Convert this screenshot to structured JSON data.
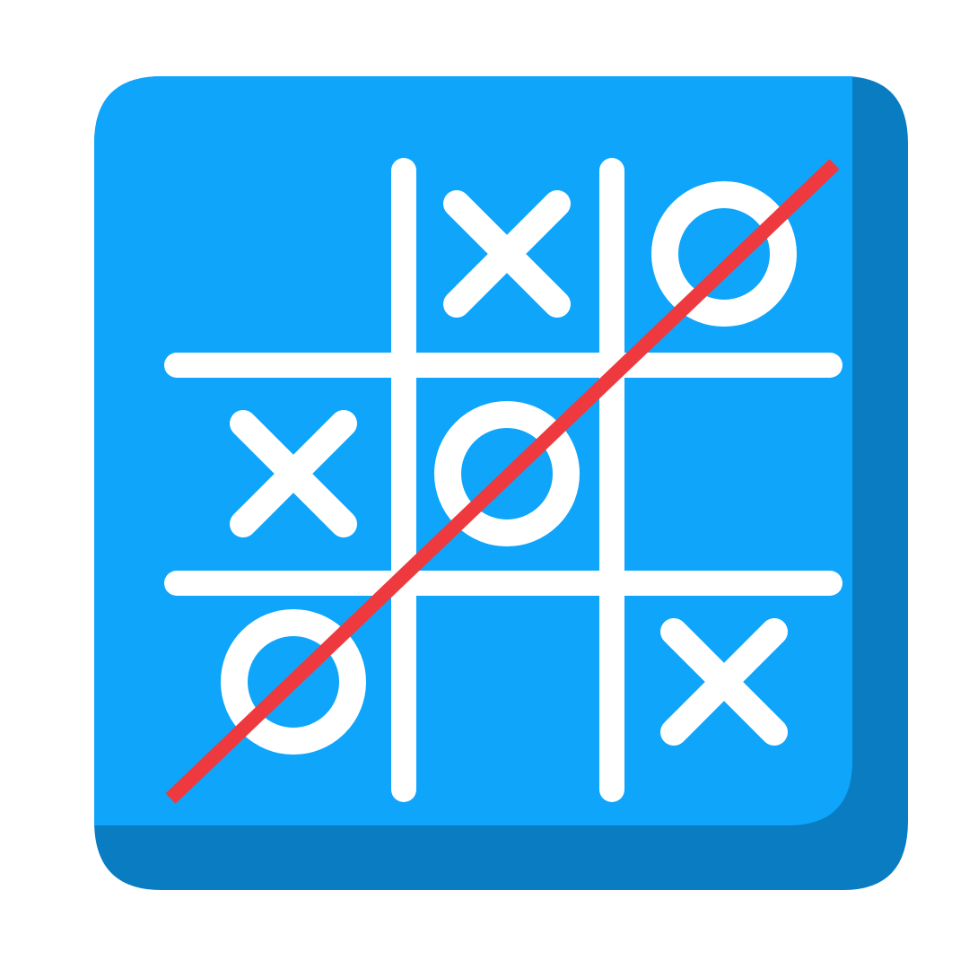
{
  "app": {
    "icon_name": "tic-tac-toe-icon"
  },
  "colors": {
    "background": "#ffffff",
    "tile_face": "#0ea5fb",
    "tile_shadow": "#0a7dc2",
    "marks": "#ffffff",
    "grid_lines": "#ffffff",
    "win_line": "#ee3a3f"
  },
  "board": {
    "rows": 3,
    "cols": 3,
    "cells": [
      [
        "",
        "X",
        "O"
      ],
      [
        "X",
        "O",
        ""
      ],
      [
        "O",
        "",
        "X"
      ]
    ]
  },
  "winning_line": {
    "player": "O",
    "direction": "anti-diagonal",
    "cells": [
      [
        0,
        2
      ],
      [
        1,
        1
      ],
      [
        2,
        0
      ]
    ]
  }
}
